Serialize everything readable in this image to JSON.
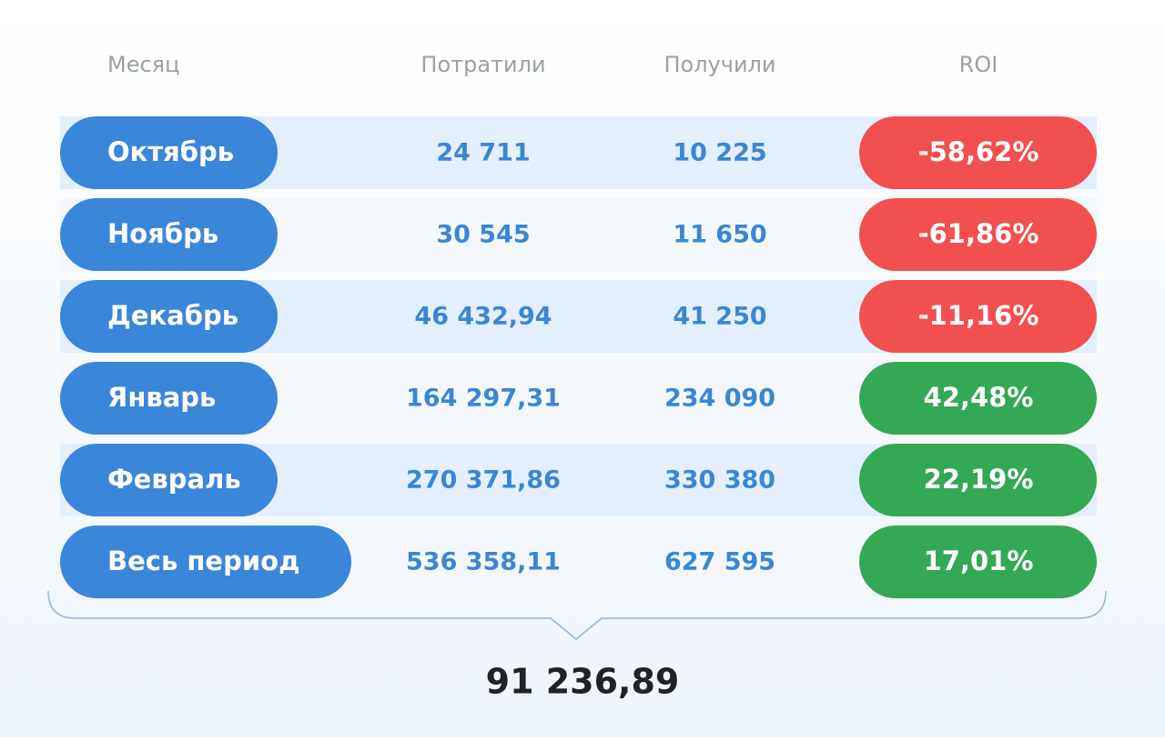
{
  "table": {
    "headers": [
      "Месяц",
      "Потратили",
      "Получили",
      "ROI"
    ],
    "rows": [
      {
        "month": "Октябрь",
        "spent": "24 711",
        "received": "10 225",
        "roi": "-58,62%",
        "roi_color": "#f24f4f"
      },
      {
        "month": "Ноябрь",
        "spent": "30 545",
        "received": "11 650",
        "roi": "-61,86%",
        "roi_color": "#f24f4f"
      },
      {
        "month": "Декабрь",
        "spent": "46 432,94",
        "received": "41 250",
        "roi": "-11,16%",
        "roi_color": "#f24f4f"
      },
      {
        "month": "Январь",
        "spent": "164 297,31",
        "received": "234 090",
        "roi": "42,48%",
        "roi_color": "#34a853"
      },
      {
        "month": "Февраль",
        "spent": "270 371,86",
        "received": "330 380",
        "roi": "22,19%",
        "roi_color": "#34a853"
      },
      {
        "month": "Весь период",
        "spent": "536 358,11",
        "received": "627 595",
        "roi": "17,01%",
        "roi_color": "#34a853"
      }
    ],
    "total": "91 236,89"
  }
}
